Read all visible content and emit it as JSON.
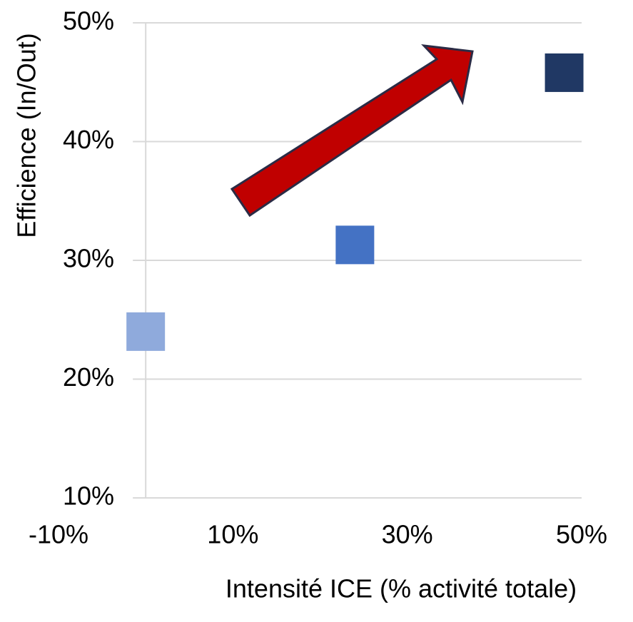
{
  "chart_data": {
    "type": "scatter",
    "x_label": "Intensité ICE (% activité totale)",
    "y_label": "Efficience (In/Out)",
    "x": [
      0,
      24,
      48
    ],
    "values": [
      24,
      31.3,
      45.8
    ],
    "colors": [
      "#8faadc",
      "#4472c4",
      "#203864"
    ],
    "xlim": [
      -10,
      50
    ],
    "xticks": [
      {
        "value": -10,
        "label": "-10%"
      },
      {
        "value": 10,
        "label": "10%"
      },
      {
        "value": 30,
        "label": "30%"
      },
      {
        "value": 50,
        "label": "50%"
      }
    ],
    "ylim": [
      10,
      50
    ],
    "yticks": [
      {
        "value": 10,
        "label": "10%"
      },
      {
        "value": 20,
        "label": "20%"
      },
      {
        "value": 30,
        "label": "30%"
      },
      {
        "value": 40,
        "label": "40%"
      },
      {
        "value": 50,
        "label": "50%"
      }
    ],
    "grid": true
  }
}
